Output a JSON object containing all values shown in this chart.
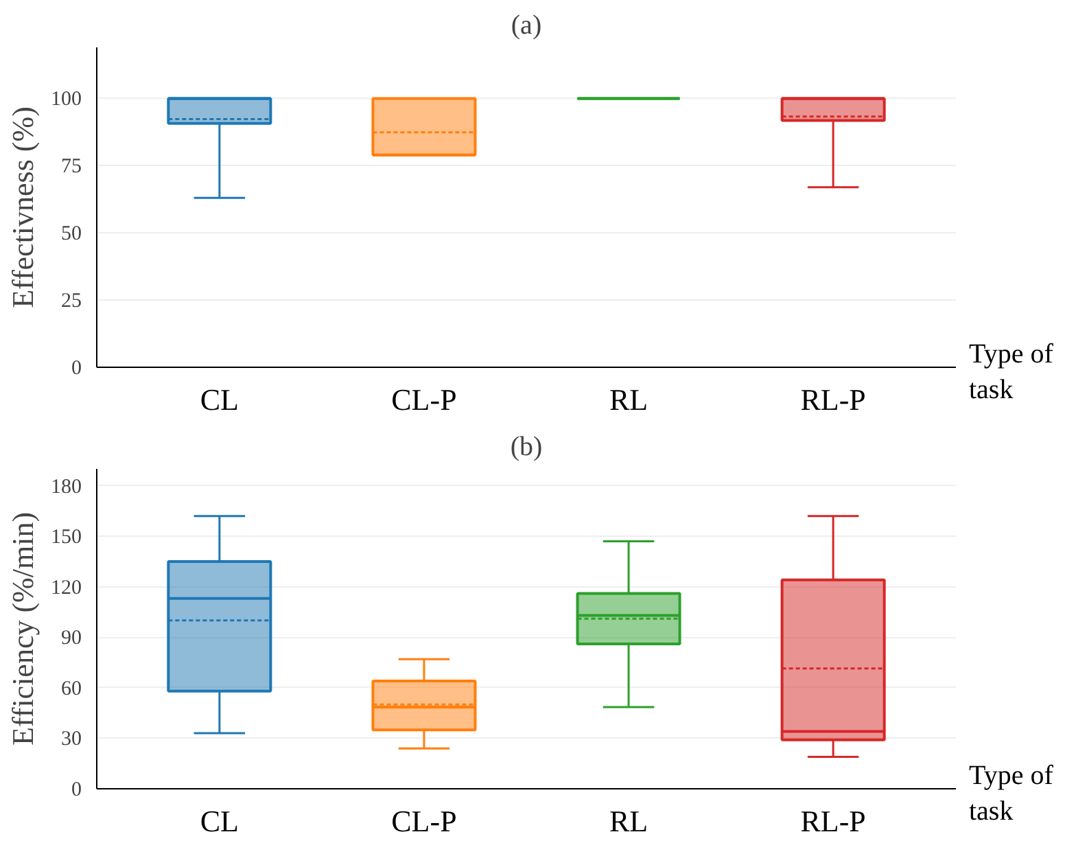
{
  "chart_data": [
    {
      "type": "box",
      "title": "(a)",
      "ylabel": "Effectivness (%)",
      "xlabel": "Type of task",
      "categories": [
        "CL",
        "CL-P",
        "RL",
        "RL-P"
      ],
      "colors": [
        "#1f77b4",
        "#ff7f0e",
        "#2ca02c",
        "#d62728"
      ],
      "ylim": [
        0,
        119
      ],
      "yticks": [
        0,
        25,
        50,
        75,
        100
      ],
      "grid": "y",
      "boxes": [
        {
          "low": 63,
          "q1": 90.7,
          "median": 100,
          "q3": 100,
          "high": 100,
          "mean": 92.3
        },
        {
          "low": 79,
          "q1": 79,
          "median": 79,
          "q3": 100,
          "high": 100,
          "mean": 87.4
        },
        {
          "low": 100,
          "q1": 100,
          "median": 100,
          "q3": 100,
          "high": 100,
          "mean": 100
        },
        {
          "low": 67,
          "q1": 91.8,
          "median": 100,
          "q3": 100,
          "high": 100,
          "mean": 93.3
        }
      ]
    },
    {
      "type": "box",
      "title": "(b)",
      "ylabel": "Efficiency (%/min)",
      "xlabel": "Type of task",
      "categories": [
        "CL",
        "CL-P",
        "RL",
        "RL-P"
      ],
      "colors": [
        "#1f77b4",
        "#ff7f0e",
        "#2ca02c",
        "#d62728"
      ],
      "ylim": [
        0,
        190
      ],
      "yticks": [
        0,
        30,
        60,
        90,
        120,
        150,
        180
      ],
      "grid": "y",
      "boxes": [
        {
          "low": 33,
          "q1": 58,
          "median": 113,
          "q3": 135,
          "high": 162,
          "mean": 100
        },
        {
          "low": 24,
          "q1": 35,
          "median": 48.5,
          "q3": 64,
          "high": 77,
          "mean": 50
        },
        {
          "low": 48.5,
          "q1": 86,
          "median": 103,
          "q3": 116,
          "high": 147,
          "mean": 101
        },
        {
          "low": 19,
          "q1": 29,
          "median": 34,
          "q3": 124,
          "high": 162,
          "mean": 71.5
        }
      ]
    }
  ]
}
